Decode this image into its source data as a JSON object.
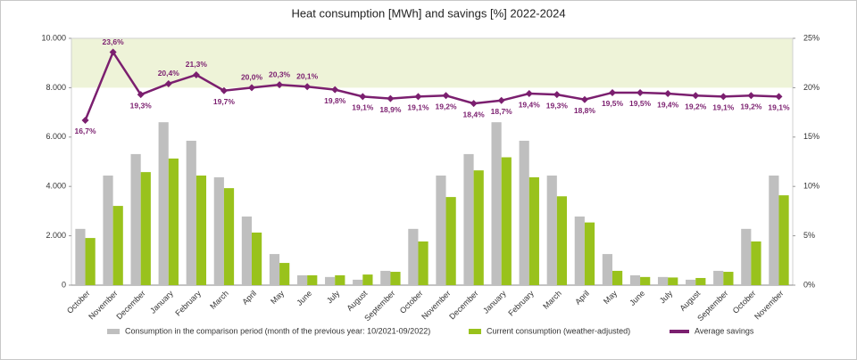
{
  "chart_data": {
    "type": "bar-line",
    "title": "Heat consumption [MWh] and savings [%] 2022-2024",
    "categories": [
      "October",
      "November",
      "December",
      "January",
      "February",
      "March",
      "April",
      "May",
      "June",
      "July",
      "August",
      "September",
      "October",
      "November",
      "December",
      "January",
      "February",
      "March",
      "April",
      "May",
      "June",
      "July",
      "August",
      "September",
      "October",
      "November"
    ],
    "series": [
      {
        "name": "Consumption in the comparison period (month of the previous year: 10/2021-09/2022)",
        "type": "bar",
        "color": "#bfbfbf",
        "values": [
          2280,
          4440,
          5310,
          6600,
          5850,
          4370,
          2780,
          1260,
          400,
          330,
          220,
          580,
          2280,
          4440,
          5310,
          6600,
          5850,
          4440,
          2780,
          1260,
          400,
          330,
          220,
          580,
          2280,
          4440
        ]
      },
      {
        "name": "Current consumption (weather-adjusted)",
        "type": "bar",
        "color": "#99c21c",
        "values": [
          1910,
          3210,
          4580,
          5130,
          4440,
          3930,
          2130,
          900,
          400,
          400,
          430,
          540,
          1770,
          3570,
          4650,
          5180,
          4370,
          3600,
          2540,
          580,
          330,
          310,
          290,
          540,
          1770,
          3640
        ]
      },
      {
        "name": "Average savings",
        "type": "line",
        "axis": "y2",
        "color": "#7b1f6f",
        "values": [
          16.7,
          23.6,
          19.3,
          20.4,
          21.3,
          19.7,
          20.0,
          20.3,
          20.1,
          19.8,
          19.1,
          18.9,
          19.1,
          19.2,
          18.4,
          18.7,
          19.4,
          19.3,
          18.8,
          19.5,
          19.5,
          19.4,
          19.2,
          19.1,
          19.2,
          19.1
        ],
        "value_labels": [
          "16,7%",
          "23,6%",
          "19,3%",
          "20,4%",
          "21,3%",
          "19,7%",
          "20,0%",
          "20,3%",
          "20,1%",
          "19,8%",
          "19,1%",
          "18,9%",
          "19,1%",
          "19,2%",
          "18,4%",
          "18,7%",
          "19,4%",
          "19,3%",
          "18,8%",
          "19,5%",
          "19,5%",
          "19,4%",
          "19,2%",
          "19,1%",
          "19,2%",
          "19,1%"
        ]
      }
    ],
    "ylim": [
      0,
      10000
    ],
    "yticks": [
      0,
      {
        "value": 2000,
        "label": "2.000"
      },
      {
        "value": 4000,
        "label": "4.000"
      },
      {
        "value": 6000,
        "label": "6.000"
      },
      {
        "value": 8000,
        "label": "8.000"
      },
      {
        "value": 10000,
        "label": "10.000"
      }
    ],
    "y2lim": [
      0,
      25
    ],
    "y2ticks": [
      {
        "value": 0,
        "label": "0%"
      },
      {
        "value": 5,
        "label": "5%"
      },
      {
        "value": 10,
        "label": "10%"
      },
      {
        "value": 15,
        "label": "15%"
      },
      {
        "value": 20,
        "label": "20%"
      },
      {
        "value": 25,
        "label": "25%"
      }
    ],
    "highlight_band": {
      "axis": "y2",
      "range": [
        20,
        25
      ],
      "color": "#eef3d8"
    },
    "legend": "bottom"
  }
}
